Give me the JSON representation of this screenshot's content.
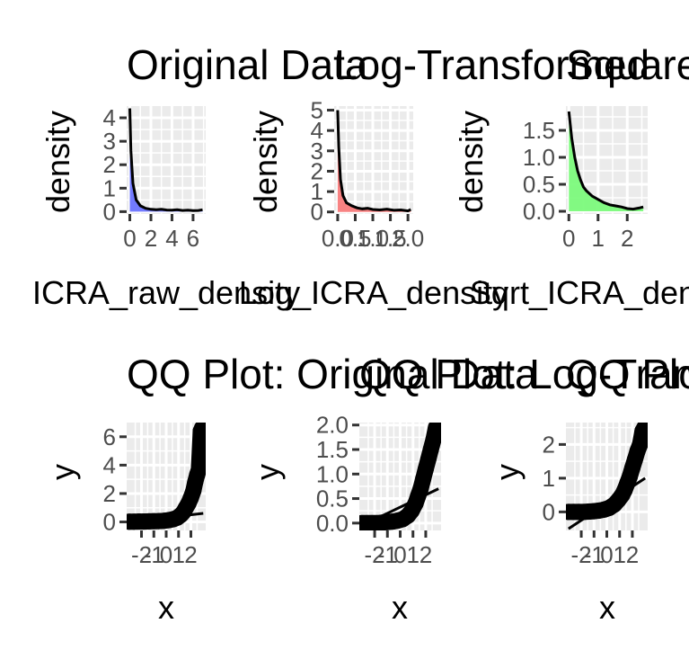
{
  "chart_data": [
    {
      "type": "area",
      "title": "Original Data",
      "xlabel": "ICRA_raw_density",
      "ylabel": "density",
      "xticks": [
        "0",
        "2",
        "4",
        "6"
      ],
      "yticks": [
        "0",
        "1",
        "2",
        "3",
        "4"
      ],
      "xlim": [
        -0.3,
        7.2
      ],
      "ylim": [
        -0.1,
        4.5
      ],
      "fill": "#6b74ff",
      "grid": true,
      "legend": "none",
      "series": [
        {
          "x": [
            0.0,
            0.1,
            0.3,
            0.6,
            1.0,
            1.5,
            2.0,
            2.5,
            3.0,
            3.5,
            4.0,
            4.5,
            5.0,
            5.5,
            6.0,
            6.5,
            6.9
          ],
          "y": [
            4.4,
            2.6,
            1.2,
            0.5,
            0.25,
            0.14,
            0.1,
            0.08,
            0.1,
            0.07,
            0.06,
            0.08,
            0.05,
            0.06,
            0.04,
            0.05,
            0.08
          ]
        }
      ]
    },
    {
      "type": "area",
      "title": "Log-Transformed",
      "xlabel": "Log_ICRA_density",
      "ylabel": "density",
      "xticks": [
        "0.0",
        "0.5",
        "1.0",
        "1.5",
        "2.0"
      ],
      "yticks": [
        "0",
        "1",
        "2",
        "3",
        "4",
        "5"
      ],
      "xlim": [
        -0.1,
        2.15
      ],
      "ylim": [
        -0.1,
        5.2
      ],
      "fill": "#f87c7c",
      "grid": true,
      "legend": "none",
      "series": [
        {
          "x": [
            0.0,
            0.03,
            0.08,
            0.15,
            0.25,
            0.4,
            0.55,
            0.7,
            0.85,
            1.0,
            1.2,
            1.4,
            1.6,
            1.8,
            2.0,
            2.08
          ],
          "y": [
            5.0,
            3.2,
            1.6,
            0.8,
            0.45,
            0.3,
            0.2,
            0.15,
            0.18,
            0.12,
            0.1,
            0.14,
            0.08,
            0.1,
            0.05,
            0.12
          ]
        }
      ]
    },
    {
      "type": "area",
      "title": "Square-Root Transformed",
      "xlabel": "Sqrt_ICRA_density",
      "ylabel": "density",
      "xticks": [
        "0",
        "1",
        "2"
      ],
      "yticks": [
        "0.0",
        "0.5",
        "1.0",
        "1.5"
      ],
      "xlim": [
        -0.1,
        2.7
      ],
      "ylim": [
        -0.05,
        1.95
      ],
      "fill": "#7cfa7c",
      "grid": true,
      "legend": "none",
      "series": [
        {
          "x": [
            0.0,
            0.05,
            0.1,
            0.2,
            0.3,
            0.4,
            0.5,
            0.6,
            0.8,
            1.0,
            1.2,
            1.4,
            1.6,
            1.8,
            2.0,
            2.2,
            2.4,
            2.55
          ],
          "y": [
            1.85,
            1.6,
            1.35,
            1.0,
            0.75,
            0.58,
            0.45,
            0.38,
            0.28,
            0.22,
            0.16,
            0.12,
            0.1,
            0.08,
            0.05,
            0.04,
            0.06,
            0.08
          ]
        }
      ]
    },
    {
      "type": "scatter",
      "title": "QQ Plot: Original Data",
      "xlabel": "x",
      "ylabel": "y",
      "xticks": [
        "-2",
        "-1",
        "0",
        "1",
        "2"
      ],
      "yticks": [
        "0",
        "2",
        "4",
        "6"
      ],
      "xlim": [
        -3.2,
        3.2
      ],
      "ylim": [
        -0.6,
        7.0
      ],
      "grid": true,
      "legend": "none",
      "points": {
        "x": [
          -3.0,
          -2.6,
          -2.2,
          -1.8,
          -1.4,
          -1.0,
          -0.6,
          -0.2,
          0.2,
          0.6,
          0.9,
          1.2,
          1.4,
          1.6,
          1.8,
          2.0,
          2.2,
          2.35,
          2.5,
          2.65,
          2.8,
          2.9
        ],
        "y": [
          0.02,
          0.02,
          0.03,
          0.03,
          0.04,
          0.05,
          0.06,
          0.08,
          0.12,
          0.2,
          0.3,
          0.5,
          0.7,
          1.0,
          1.3,
          1.7,
          2.2,
          2.8,
          3.3,
          3.7,
          6.4,
          6.6
        ]
      },
      "line": {
        "x": [
          -3.0,
          3.0
        ],
        "y": [
          0.02,
          0.6
        ]
      }
    },
    {
      "type": "scatter",
      "title": "QQ Plot: Log-Transformed",
      "xlabel": "x",
      "ylabel": "y",
      "xticks": [
        "-2",
        "-1",
        "0",
        "1",
        "2"
      ],
      "yticks": [
        "0.0",
        "0.5",
        "1.0",
        "1.5",
        "2.0"
      ],
      "xlim": [
        -3.2,
        3.2
      ],
      "ylim": [
        -0.15,
        2.05
      ],
      "grid": true,
      "legend": "none",
      "points": {
        "x": [
          -3.0,
          -2.6,
          -2.2,
          -1.8,
          -1.4,
          -1.0,
          -0.6,
          -0.2,
          0.2,
          0.6,
          0.9,
          1.2,
          1.4,
          1.6,
          1.8,
          2.0,
          2.2,
          2.4,
          2.6,
          2.8,
          2.95
        ],
        "y": [
          0.0,
          0.0,
          0.0,
          0.0,
          0.01,
          0.02,
          0.03,
          0.05,
          0.08,
          0.15,
          0.25,
          0.4,
          0.55,
          0.7,
          0.9,
          1.1,
          1.3,
          1.5,
          1.7,
          1.95,
          2.0
        ]
      },
      "line": {
        "x": [
          -3.0,
          3.0
        ],
        "y": [
          -0.05,
          0.7
        ]
      }
    },
    {
      "type": "scatter",
      "title": "QQ Plot: Square-Root Transformed",
      "xlabel": "x",
      "ylabel": "y",
      "xticks": [
        "-2",
        "-1",
        "0",
        "1",
        "2"
      ],
      "yticks": [
        "0",
        "1",
        "2"
      ],
      "xlim": [
        -3.2,
        3.2
      ],
      "ylim": [
        -0.55,
        2.65
      ],
      "grid": true,
      "legend": "none",
      "points": {
        "x": [
          -3.0,
          -2.6,
          -2.2,
          -1.8,
          -1.4,
          -1.0,
          -0.6,
          -0.2,
          0.2,
          0.6,
          0.9,
          1.2,
          1.4,
          1.6,
          1.8,
          2.0,
          2.2,
          2.4,
          2.6,
          2.8,
          2.95
        ],
        "y": [
          0.0,
          0.0,
          0.0,
          0.0,
          0.01,
          0.02,
          0.04,
          0.07,
          0.12,
          0.22,
          0.35,
          0.5,
          0.65,
          0.85,
          1.05,
          1.3,
          1.55,
          1.8,
          2.0,
          2.4,
          2.5
        ]
      },
      "line": {
        "x": [
          -3.0,
          3.0
        ],
        "y": [
          -0.5,
          1.0
        ]
      }
    }
  ]
}
